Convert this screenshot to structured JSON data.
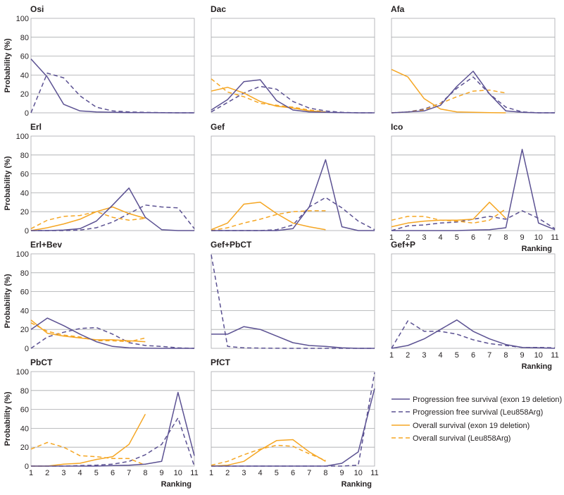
{
  "chart_data": {
    "type": "line",
    "ylabel": "Probability (%)",
    "xlabel": "Ranking",
    "ylim": [
      0,
      100
    ],
    "yticks": [
      "0",
      "20",
      "40",
      "60",
      "80",
      "100"
    ],
    "xticks": [
      "1",
      "2",
      "3",
      "4",
      "5",
      "6",
      "7",
      "8",
      "9",
      "10",
      "11"
    ],
    "colors": {
      "pfs": "#5b5192",
      "os": "#f5a623",
      "frame": "#a7a9ac"
    },
    "legend": [
      {
        "key": "pfs_ex19",
        "label": "Progression free survival (exon 19 deletion)"
      },
      {
        "key": "pfs_leu",
        "label": "Progression free survival (Leu858Arg)"
      },
      {
        "key": "os_ex19",
        "label": "Overall survival (exon 19 deletion)"
      },
      {
        "key": "os_leu",
        "label": "Overall survival (Leu858Arg)"
      }
    ],
    "panels": [
      {
        "title": "Osi",
        "series": {
          "pfs_ex19": [
            57,
            38,
            9,
            2,
            1,
            0.5,
            0.3,
            0.2,
            0.1,
            0,
            0
          ],
          "pfs_leu": [
            0,
            42,
            37,
            18,
            6,
            2,
            1,
            0.5,
            0.2,
            0,
            0
          ]
        }
      },
      {
        "title": "Dac",
        "series": {
          "pfs_ex19": [
            3,
            14,
            33,
            35,
            13,
            3,
            1,
            0.5,
            0.2,
            0,
            0
          ],
          "pfs_leu": [
            1,
            11,
            21,
            28,
            25,
            12,
            5,
            2,
            0.5,
            0,
            0
          ],
          "os_ex19": [
            23,
            27,
            21,
            12,
            7,
            5,
            2,
            1
          ],
          "os_leu": [
            36,
            22,
            17,
            10,
            8,
            6,
            3,
            1
          ]
        }
      },
      {
        "title": "Afa",
        "series": {
          "pfs_ex19": [
            0,
            1,
            2,
            8,
            28,
            44,
            20,
            2,
            0.5,
            0,
            0
          ],
          "pfs_leu": [
            0,
            1,
            4,
            10,
            26,
            38,
            20,
            6,
            1,
            0,
            0
          ],
          "os_ex19": [
            46,
            38,
            15,
            4,
            1,
            0.5,
            0.2,
            0
          ],
          "os_leu": [
            0,
            1,
            3,
            10,
            17,
            23,
            24,
            21
          ]
        }
      },
      {
        "title": "Erl",
        "series": {
          "pfs_ex19": [
            0,
            0,
            0.5,
            2,
            10,
            27,
            45,
            14,
            1,
            0,
            0
          ],
          "pfs_leu": [
            0,
            0,
            0,
            0.5,
            3,
            9,
            18,
            27,
            25,
            24,
            2
          ],
          "os_ex19": [
            0,
            3,
            7,
            12,
            20,
            25,
            18,
            13
          ],
          "os_leu": [
            2,
            11,
            15,
            16,
            20,
            14,
            11,
            13
          ]
        }
      },
      {
        "title": "Gef",
        "series": {
          "pfs_ex19": [
            0,
            0,
            0,
            0,
            0,
            2,
            25,
            75,
            4,
            0,
            0
          ],
          "pfs_leu": [
            0,
            0,
            0,
            0,
            1,
            6,
            25,
            35,
            24,
            10,
            1
          ],
          "os_ex19": [
            1,
            8,
            28,
            30,
            18,
            8,
            4,
            1
          ],
          "os_leu": [
            0,
            3,
            8,
            12,
            17,
            20,
            21,
            21
          ]
        }
      },
      {
        "title": "Ico",
        "series": {
          "pfs_ex19": [
            0,
            0,
            0,
            0,
            0,
            0.5,
            1,
            3,
            86,
            8,
            1
          ],
          "pfs_leu": [
            0,
            5,
            6,
            8,
            9,
            12,
            15,
            12,
            21,
            13,
            2
          ],
          "os_ex19": [
            4,
            8,
            10,
            11,
            11,
            12,
            30,
            13
          ],
          "os_leu": [
            11,
            15,
            15,
            11,
            10,
            8,
            11,
            23
          ]
        }
      },
      {
        "title": "Erl+Bev",
        "series": {
          "pfs_ex19": [
            20,
            32,
            24,
            15,
            7,
            2,
            0.5,
            0.2,
            0,
            0,
            0
          ],
          "pfs_leu": [
            0,
            12,
            17,
            21,
            22,
            15,
            6,
            3,
            2,
            0.5,
            0
          ],
          "os_ex19": [
            30,
            16,
            13,
            11,
            9,
            9,
            8,
            7
          ],
          "os_leu": [
            27,
            18,
            14,
            12,
            8,
            8,
            7,
            11
          ]
        }
      },
      {
        "title": "Gef+PbCT",
        "series": {
          "pfs_ex19": [
            15,
            15,
            23,
            20,
            13,
            6,
            3,
            2,
            0.5,
            0,
            0
          ],
          "pfs_leu": [
            99,
            2,
            0.5,
            0.2,
            0.1,
            0,
            0,
            0,
            0,
            0,
            0
          ]
        }
      },
      {
        "title": "Gef+P",
        "series": {
          "pfs_ex19": [
            0,
            3,
            10,
            20,
            30,
            18,
            10,
            4,
            1,
            0.5,
            0
          ],
          "pfs_leu": [
            0,
            29,
            18,
            18,
            15,
            9,
            5,
            3,
            1,
            1,
            0.5
          ]
        }
      },
      {
        "title": "PbCT",
        "series": {
          "pfs_ex19": [
            0,
            0,
            0,
            0,
            0,
            0.5,
            1,
            2,
            5,
            78,
            11
          ],
          "pfs_leu": [
            0,
            0,
            0,
            0.5,
            1,
            2,
            5,
            12,
            23,
            51,
            0
          ],
          "os_ex19": [
            0,
            0,
            2,
            3,
            7,
            10,
            23,
            55
          ],
          "os_leu": [
            18,
            25,
            20,
            11,
            10,
            8,
            8,
            1
          ]
        }
      },
      {
        "title": "PfCT",
        "series": {
          "pfs_ex19": [
            0,
            0,
            0,
            0,
            0,
            0,
            0,
            0,
            3,
            15,
            82
          ],
          "pfs_leu": [
            0,
            0,
            0,
            0,
            0,
            0,
            0,
            0,
            0,
            1,
            99
          ],
          "os_ex19": [
            0,
            1,
            5,
            17,
            27,
            28,
            15,
            5
          ],
          "os_leu": [
            1,
            5,
            12,
            18,
            22,
            21,
            13,
            6
          ]
        }
      }
    ]
  }
}
